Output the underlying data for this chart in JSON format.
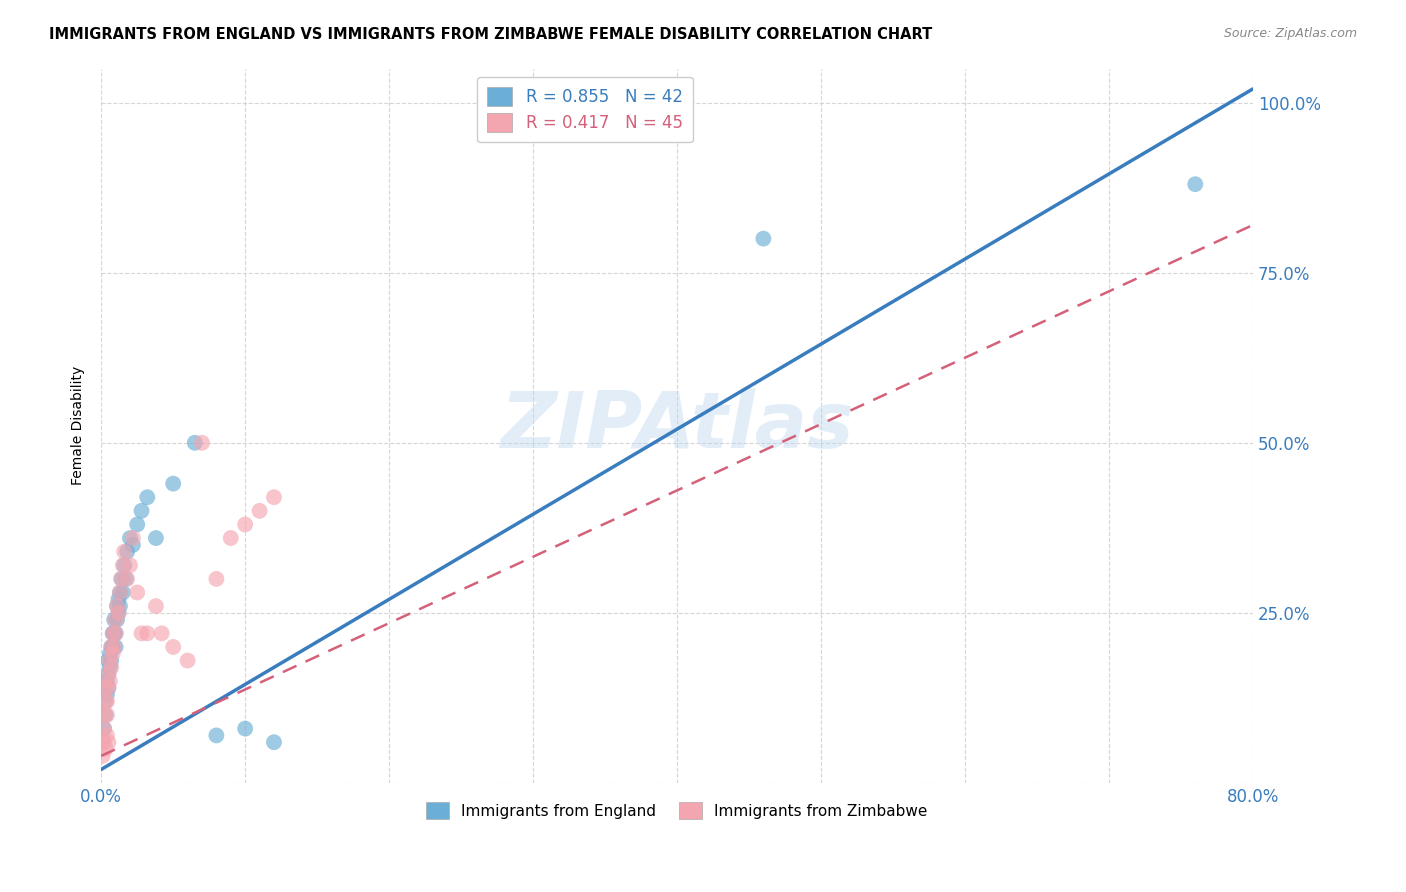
{
  "title": "IMMIGRANTS FROM ENGLAND VS IMMIGRANTS FROM ZIMBABWE FEMALE DISABILITY CORRELATION CHART",
  "source": "Source: ZipAtlas.com",
  "ylabel": "Female Disability",
  "x_min": 0.0,
  "x_max": 0.8,
  "y_min": 0.0,
  "y_max": 1.05,
  "england_color": "#6baed6",
  "zimbabwe_color": "#f4a6b0",
  "england_line_color": "#3a7dbf",
  "zimbabwe_line_color": "#d4607a",
  "legend_R_england": "0.855",
  "legend_N_england": "42",
  "legend_R_zimbabwe": "0.417",
  "legend_N_zimbabwe": "45",
  "watermark": "ZIPAtlas",
  "england_line_x0": 0.0,
  "england_line_y0": 0.02,
  "england_line_x1": 0.8,
  "england_line_y1": 1.02,
  "zimbabwe_line_x0": 0.0,
  "zimbabwe_line_y0": 0.04,
  "zimbabwe_line_x1": 0.8,
  "zimbabwe_line_y1": 0.82,
  "england_x": [
    0.002,
    0.003,
    0.003,
    0.004,
    0.004,
    0.005,
    0.005,
    0.005,
    0.006,
    0.006,
    0.007,
    0.007,
    0.008,
    0.008,
    0.009,
    0.009,
    0.01,
    0.01,
    0.011,
    0.011,
    0.012,
    0.012,
    0.013,
    0.013,
    0.014,
    0.015,
    0.016,
    0.017,
    0.018,
    0.02,
    0.022,
    0.025,
    0.028,
    0.032,
    0.038,
    0.05,
    0.065,
    0.08,
    0.1,
    0.12,
    0.46,
    0.76
  ],
  "england_y": [
    0.08,
    0.1,
    0.12,
    0.13,
    0.15,
    0.14,
    0.16,
    0.18,
    0.17,
    0.19,
    0.2,
    0.18,
    0.22,
    0.2,
    0.22,
    0.24,
    0.2,
    0.22,
    0.24,
    0.26,
    0.25,
    0.27,
    0.26,
    0.28,
    0.3,
    0.28,
    0.32,
    0.3,
    0.34,
    0.36,
    0.35,
    0.38,
    0.4,
    0.42,
    0.36,
    0.44,
    0.5,
    0.07,
    0.08,
    0.06,
    0.8,
    0.88
  ],
  "zimbabwe_x": [
    0.001,
    0.002,
    0.002,
    0.003,
    0.003,
    0.004,
    0.004,
    0.005,
    0.005,
    0.006,
    0.006,
    0.007,
    0.007,
    0.008,
    0.008,
    0.009,
    0.01,
    0.01,
    0.011,
    0.012,
    0.013,
    0.014,
    0.015,
    0.016,
    0.018,
    0.02,
    0.022,
    0.025,
    0.028,
    0.032,
    0.038,
    0.042,
    0.05,
    0.06,
    0.07,
    0.08,
    0.09,
    0.1,
    0.11,
    0.12,
    0.001,
    0.002,
    0.003,
    0.004,
    0.005
  ],
  "zimbabwe_y": [
    0.06,
    0.08,
    0.1,
    0.12,
    0.14,
    0.1,
    0.12,
    0.14,
    0.16,
    0.15,
    0.18,
    0.17,
    0.2,
    0.19,
    0.22,
    0.2,
    0.22,
    0.24,
    0.26,
    0.25,
    0.28,
    0.3,
    0.32,
    0.34,
    0.3,
    0.32,
    0.36,
    0.28,
    0.22,
    0.22,
    0.26,
    0.22,
    0.2,
    0.18,
    0.5,
    0.3,
    0.36,
    0.38,
    0.4,
    0.42,
    0.04,
    0.06,
    0.05,
    0.07,
    0.06
  ]
}
